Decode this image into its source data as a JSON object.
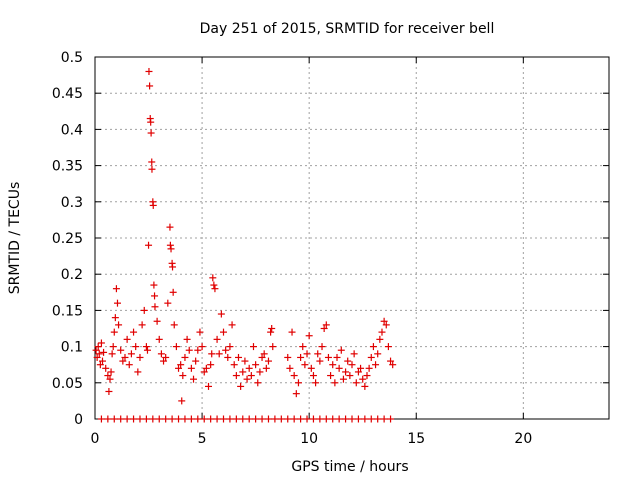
{
  "chart_data": {
    "type": "scatter",
    "title": "Day 251 of 2015, SRMTID for receiver bell",
    "xlabel": "GPS time / hours",
    "ylabel": "SRMTID / TECUs",
    "xlim": [
      0,
      24
    ],
    "ylim": [
      0,
      0.5
    ],
    "xticks": [
      "0",
      "5",
      "10",
      "15",
      "20"
    ],
    "yticks": [
      "0",
      "0.05",
      "0.1",
      "0.15",
      "0.2",
      "0.25",
      "0.3",
      "0.35",
      "0.4",
      "0.45",
      "0.5"
    ],
    "grid": true,
    "legend": "none",
    "marker": "+",
    "color": "#e00000",
    "series": [
      {
        "points": [
          [
            0.05,
            0.095
          ],
          [
            0.1,
            0.085
          ],
          [
            0.15,
            0.1
          ],
          [
            0.2,
            0.09
          ],
          [
            0.25,
            0.075
          ],
          [
            0.3,
            0.105
          ],
          [
            0.35,
            0.08
          ],
          [
            0.4,
            0.092
          ],
          [
            0.5,
            0.07
          ],
          [
            0.6,
            0.06
          ],
          [
            0.65,
            0.038
          ],
          [
            0.7,
            0.055
          ],
          [
            0.75,
            0.065
          ],
          [
            0.8,
            0.09
          ],
          [
            0.85,
            0.1
          ],
          [
            0.9,
            0.12
          ],
          [
            0.95,
            0.14
          ],
          [
            1.0,
            0.18
          ],
          [
            1.05,
            0.16
          ],
          [
            1.1,
            0.13
          ],
          [
            1.2,
            0.095
          ],
          [
            1.3,
            0.08
          ],
          [
            1.4,
            0.085
          ],
          [
            1.5,
            0.11
          ],
          [
            1.6,
            0.075
          ],
          [
            1.7,
            0.09
          ],
          [
            1.8,
            0.12
          ],
          [
            1.9,
            0.1
          ],
          [
            2.0,
            0.065
          ],
          [
            2.1,
            0.085
          ],
          [
            2.2,
            0.13
          ],
          [
            2.3,
            0.15
          ],
          [
            2.4,
            0.1
          ],
          [
            2.45,
            0.095
          ],
          [
            2.5,
            0.24
          ],
          [
            2.52,
            0.48
          ],
          [
            2.55,
            0.46
          ],
          [
            2.58,
            0.415
          ],
          [
            2.6,
            0.41
          ],
          [
            2.62,
            0.395
          ],
          [
            2.65,
            0.355
          ],
          [
            2.66,
            0.345
          ],
          [
            2.7,
            0.3
          ],
          [
            2.72,
            0.295
          ],
          [
            2.75,
            0.185
          ],
          [
            2.78,
            0.17
          ],
          [
            2.8,
            0.155
          ],
          [
            2.9,
            0.135
          ],
          [
            3.0,
            0.11
          ],
          [
            3.1,
            0.09
          ],
          [
            3.2,
            0.08
          ],
          [
            3.3,
            0.085
          ],
          [
            3.4,
            0.16
          ],
          [
            3.5,
            0.265
          ],
          [
            3.52,
            0.24
          ],
          [
            3.55,
            0.235
          ],
          [
            3.6,
            0.215
          ],
          [
            3.62,
            0.21
          ],
          [
            3.65,
            0.175
          ],
          [
            3.7,
            0.13
          ],
          [
            3.8,
            0.1
          ],
          [
            3.9,
            0.07
          ],
          [
            4.0,
            0.075
          ],
          [
            4.05,
            0.025
          ],
          [
            4.1,
            0.06
          ],
          [
            4.2,
            0.085
          ],
          [
            4.3,
            0.11
          ],
          [
            4.4,
            0.095
          ],
          [
            4.5,
            0.07
          ],
          [
            4.6,
            0.055
          ],
          [
            4.7,
            0.08
          ],
          [
            4.8,
            0.095
          ],
          [
            4.9,
            0.12
          ],
          [
            5.0,
            0.1
          ],
          [
            5.1,
            0.065
          ],
          [
            5.2,
            0.07
          ],
          [
            5.3,
            0.045
          ],
          [
            5.4,
            0.075
          ],
          [
            5.45,
            0.09
          ],
          [
            5.5,
            0.195
          ],
          [
            5.55,
            0.185
          ],
          [
            5.6,
            0.18
          ],
          [
            5.7,
            0.11
          ],
          [
            5.8,
            0.09
          ],
          [
            5.9,
            0.145
          ],
          [
            6.0,
            0.12
          ],
          [
            6.1,
            0.095
          ],
          [
            6.2,
            0.085
          ],
          [
            6.3,
            0.1
          ],
          [
            6.4,
            0.13
          ],
          [
            6.5,
            0.075
          ],
          [
            6.6,
            0.06
          ],
          [
            6.7,
            0.085
          ],
          [
            6.8,
            0.045
          ],
          [
            6.9,
            0.065
          ],
          [
            7.0,
            0.08
          ],
          [
            7.1,
            0.055
          ],
          [
            7.2,
            0.07
          ],
          [
            7.3,
            0.06
          ],
          [
            7.4,
            0.1
          ],
          [
            7.5,
            0.075
          ],
          [
            7.6,
            0.05
          ],
          [
            7.7,
            0.065
          ],
          [
            7.8,
            0.085
          ],
          [
            7.9,
            0.09
          ],
          [
            8.0,
            0.07
          ],
          [
            8.1,
            0.08
          ],
          [
            8.2,
            0.12
          ],
          [
            8.25,
            0.125
          ],
          [
            8.3,
            0.1
          ],
          [
            9.0,
            0.085
          ],
          [
            9.1,
            0.07
          ],
          [
            9.2,
            0.12
          ],
          [
            9.3,
            0.06
          ],
          [
            9.4,
            0.035
          ],
          [
            9.5,
            0.05
          ],
          [
            9.6,
            0.085
          ],
          [
            9.7,
            0.1
          ],
          [
            9.8,
            0.075
          ],
          [
            9.9,
            0.09
          ],
          [
            10.0,
            0.115
          ],
          [
            10.1,
            0.07
          ],
          [
            10.2,
            0.06
          ],
          [
            10.3,
            0.05
          ],
          [
            10.4,
            0.09
          ],
          [
            10.5,
            0.08
          ],
          [
            10.6,
            0.1
          ],
          [
            10.7,
            0.125
          ],
          [
            10.8,
            0.13
          ],
          [
            10.9,
            0.085
          ],
          [
            11.0,
            0.06
          ],
          [
            11.1,
            0.075
          ],
          [
            11.2,
            0.05
          ],
          [
            11.3,
            0.085
          ],
          [
            11.4,
            0.07
          ],
          [
            11.5,
            0.095
          ],
          [
            11.6,
            0.055
          ],
          [
            11.7,
            0.065
          ],
          [
            11.8,
            0.08
          ],
          [
            11.9,
            0.06
          ],
          [
            12.0,
            0.075
          ],
          [
            12.1,
            0.09
          ],
          [
            12.2,
            0.05
          ],
          [
            12.3,
            0.065
          ],
          [
            12.4,
            0.07
          ],
          [
            12.5,
            0.055
          ],
          [
            12.6,
            0.045
          ],
          [
            12.7,
            0.06
          ],
          [
            12.8,
            0.07
          ],
          [
            12.9,
            0.085
          ],
          [
            13.0,
            0.1
          ],
          [
            13.1,
            0.075
          ],
          [
            13.2,
            0.09
          ],
          [
            13.3,
            0.11
          ],
          [
            13.4,
            0.12
          ],
          [
            13.5,
            0.135
          ],
          [
            13.6,
            0.13
          ],
          [
            13.7,
            0.1
          ],
          [
            13.8,
            0.08
          ],
          [
            13.9,
            0.075
          ],
          [
            0.3,
            0.0
          ],
          [
            0.6,
            0.0
          ],
          [
            0.9,
            0.0
          ],
          [
            1.2,
            0.0
          ],
          [
            1.5,
            0.0
          ],
          [
            1.8,
            0.0
          ],
          [
            2.1,
            0.0
          ],
          [
            2.4,
            0.0
          ],
          [
            2.7,
            0.0
          ],
          [
            3.0,
            0.0
          ],
          [
            3.3,
            0.0
          ],
          [
            3.6,
            0.0
          ],
          [
            3.9,
            0.0
          ],
          [
            4.2,
            0.0
          ],
          [
            4.5,
            0.0
          ],
          [
            4.8,
            0.0
          ],
          [
            5.1,
            0.0
          ],
          [
            5.4,
            0.0
          ],
          [
            5.7,
            0.0
          ],
          [
            6.0,
            0.0
          ],
          [
            6.3,
            0.0
          ],
          [
            6.6,
            0.0
          ],
          [
            6.9,
            0.0
          ],
          [
            7.2,
            0.0
          ],
          [
            7.5,
            0.0
          ],
          [
            7.8,
            0.0
          ],
          [
            8.1,
            0.0
          ],
          [
            8.4,
            0.0
          ],
          [
            8.7,
            0.0
          ],
          [
            9.0,
            0.0
          ],
          [
            9.3,
            0.0
          ],
          [
            9.6,
            0.0
          ],
          [
            9.9,
            0.0
          ],
          [
            10.2,
            0.0
          ],
          [
            10.5,
            0.0
          ],
          [
            10.8,
            0.0
          ],
          [
            11.1,
            0.0
          ],
          [
            11.4,
            0.0
          ],
          [
            11.7,
            0.0
          ],
          [
            12.0,
            0.0
          ],
          [
            12.3,
            0.0
          ],
          [
            12.6,
            0.0
          ],
          [
            12.9,
            0.0
          ],
          [
            13.2,
            0.0
          ],
          [
            13.5,
            0.0
          ],
          [
            13.8,
            0.0
          ]
        ]
      }
    ]
  }
}
